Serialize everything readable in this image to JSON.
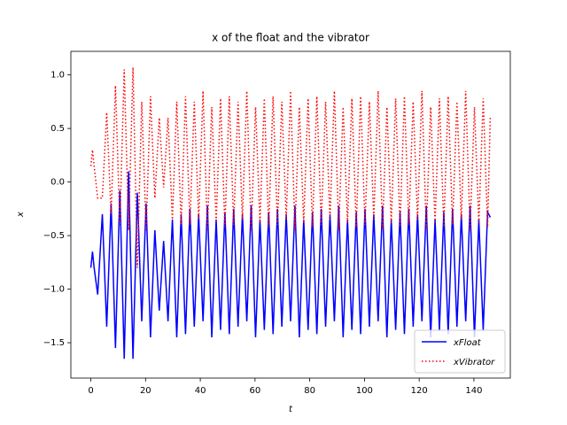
{
  "chart_data": {
    "type": "line",
    "title": "x of the float and the vibrator",
    "x_label": "t",
    "y_label": "x",
    "x": [
      0,
      0.6,
      1.2,
      2.5,
      4.2,
      5.8,
      7.4,
      9,
      10.6,
      12.2,
      13.8,
      15.4,
      17,
      18.6,
      20.2,
      21.8,
      23.4,
      25,
      26.6,
      28.2,
      29.8,
      31.4,
      33,
      34.6,
      36.2,
      37.8,
      39.4,
      41,
      42.6,
      44.2,
      45.8,
      47.4,
      49,
      50.6,
      52.2,
      53.8,
      55.4,
      57,
      58.6,
      60.2,
      61.8,
      63.4,
      65,
      66.6,
      68.2,
      69.8,
      71.4,
      73,
      74.6,
      76.2,
      77.8,
      79.4,
      81,
      82.6,
      84.2,
      85.8,
      87.4,
      89,
      90.6,
      92.2,
      93.8,
      95.4,
      97,
      98.6,
      100.2,
      101.8,
      103.4,
      105,
      106.6,
      108.2,
      109.8,
      111.4,
      113,
      114.6,
      116.2,
      117.8,
      119.4,
      121,
      122.6,
      124.2,
      125.8,
      127.4,
      129,
      130.6,
      132.2,
      133.8,
      135.4,
      137,
      138.6,
      140.2,
      141.8,
      143.4,
      145,
      146
    ],
    "series": [
      {
        "name": "xFloat",
        "color": "#0000ff",
        "dash": "solid",
        "values": [
          -0.8,
          -0.65,
          -0.8,
          -1.05,
          -0.3,
          -1.35,
          -0.2,
          -1.55,
          -0.08,
          -1.65,
          0.1,
          -1.65,
          -0.1,
          -1.3,
          -0.2,
          -1.45,
          -0.45,
          -1.2,
          -0.55,
          -1.3,
          -0.35,
          -1.45,
          -0.3,
          -1.42,
          -0.25,
          -1.35,
          -0.3,
          -1.3,
          -0.22,
          -1.45,
          -0.35,
          -1.38,
          -0.28,
          -1.42,
          -0.25,
          -1.35,
          -0.3,
          -1.3,
          -0.22,
          -1.45,
          -0.35,
          -1.38,
          -0.28,
          -1.42,
          -0.25,
          -1.35,
          -0.3,
          -1.3,
          -0.22,
          -1.45,
          -0.35,
          -1.38,
          -0.28,
          -1.42,
          -0.25,
          -1.35,
          -0.3,
          -1.3,
          -0.22,
          -1.45,
          -0.35,
          -1.38,
          -0.28,
          -1.42,
          -0.25,
          -1.35,
          -0.3,
          -1.3,
          -0.22,
          -1.45,
          -0.35,
          -1.38,
          -0.28,
          -1.42,
          -0.25,
          -1.35,
          -0.3,
          -1.3,
          -0.22,
          -1.45,
          -0.35,
          -1.38,
          -0.28,
          -1.42,
          -0.25,
          -1.35,
          -0.3,
          -1.3,
          -0.22,
          -1.45,
          -0.35,
          -1.38,
          -0.28,
          -0.33
        ]
      },
      {
        "name": "xVibrator",
        "color": "#ff0000",
        "dash": "dotted",
        "values": [
          0.15,
          0.3,
          0.15,
          -0.15,
          -0.15,
          0.65,
          -0.3,
          0.9,
          -0.4,
          1.05,
          -0.45,
          1.07,
          -0.8,
          0.75,
          -0.45,
          0.8,
          -0.15,
          0.6,
          -0.05,
          0.6,
          -0.35,
          0.75,
          -0.4,
          0.8,
          -0.4,
          0.75,
          -0.35,
          0.85,
          -0.45,
          0.7,
          -0.38,
          0.78,
          -0.42,
          0.8,
          -0.4,
          0.75,
          -0.35,
          0.85,
          -0.45,
          0.7,
          -0.38,
          0.78,
          -0.42,
          0.8,
          -0.4,
          0.75,
          -0.35,
          0.85,
          -0.45,
          0.7,
          -0.38,
          0.78,
          -0.42,
          0.8,
          -0.4,
          0.75,
          -0.35,
          0.85,
          -0.45,
          0.7,
          -0.38,
          0.78,
          -0.42,
          0.8,
          -0.4,
          0.75,
          -0.35,
          0.85,
          -0.45,
          0.7,
          -0.38,
          0.78,
          -0.42,
          0.8,
          -0.4,
          0.75,
          -0.35,
          0.85,
          -0.45,
          0.7,
          -0.38,
          0.78,
          -0.42,
          0.8,
          -0.4,
          0.75,
          -0.35,
          0.85,
          -0.45,
          0.7,
          -0.38,
          0.78,
          -0.42,
          0.62
        ]
      }
    ],
    "xlim": [
      -7.3,
      153.3
    ],
    "ylim": [
      -1.83,
      1.22
    ],
    "xticks": [
      0,
      20,
      40,
      60,
      80,
      100,
      120,
      140
    ],
    "yticks": [
      {
        "value": -1.5,
        "label": "−1.5"
      },
      {
        "value": -1,
        "label": "−1.0"
      },
      {
        "value": -0.5,
        "label": "−0.5"
      },
      {
        "value": 0,
        "label": "0.0"
      },
      0.5,
      {
        "value": 1,
        "label": "1.0"
      }
    ],
    "grid": false,
    "legend": "lower right"
  }
}
